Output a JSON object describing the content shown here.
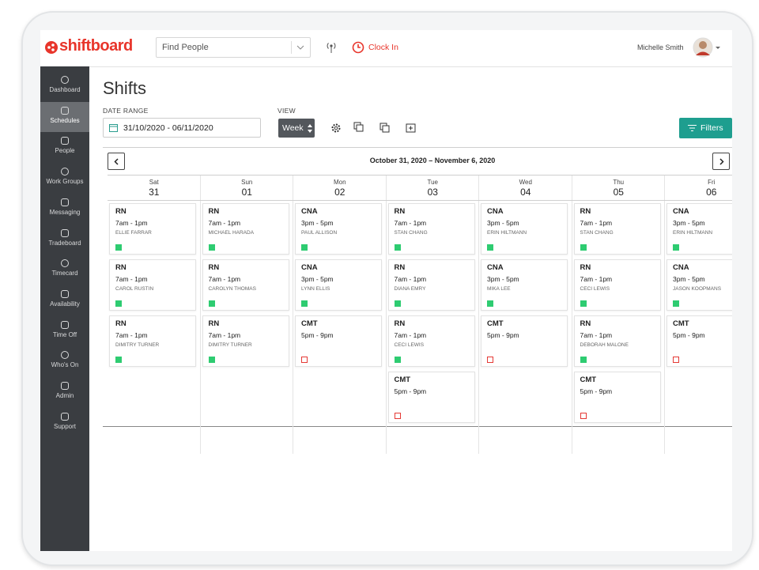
{
  "header": {
    "logo": "shiftboard",
    "search_placeholder": "Find People",
    "clock_in": "Clock In",
    "user": "Michelle Smith"
  },
  "sidebar": [
    "Dashboard",
    "Schedules",
    "People",
    "Work Groups",
    "Messaging",
    "Tradeboard",
    "Timecard",
    "Availability",
    "Time Off",
    "Who's On",
    "Admin",
    "Support"
  ],
  "page": {
    "title": "Shifts",
    "date_range_label": "DATE RANGE",
    "date_range": "31/10/2020 - 06/11/2020",
    "view_label": "VIEW",
    "view": "Week",
    "filters": "Filters",
    "range_title": "October 31, 2020 – November 6, 2020"
  },
  "days": [
    {
      "weekday": "Sat",
      "date": "31",
      "shifts": [
        {
          "role": "RN",
          "time": "7am - 1pm",
          "person": "ELLIE FARRAR",
          "status": "filled"
        },
        {
          "role": "RN",
          "time": "7am - 1pm",
          "person": "CAROL RUSTIN",
          "status": "filled"
        },
        {
          "role": "RN",
          "time": "7am - 1pm",
          "person": "DIMITRY TURNER",
          "status": "filled"
        }
      ]
    },
    {
      "weekday": "Sun",
      "date": "01",
      "shifts": [
        {
          "role": "RN",
          "time": "7am - 1pm",
          "person": "MICHAEL HARADA",
          "status": "filled"
        },
        {
          "role": "RN",
          "time": "7am - 1pm",
          "person": "CAROLYN THOMAS",
          "status": "filled"
        },
        {
          "role": "RN",
          "time": "7am - 1pm",
          "person": "DIMITRY TURNER",
          "status": "filled"
        }
      ]
    },
    {
      "weekday": "Mon",
      "date": "02",
      "shifts": [
        {
          "role": "CNA",
          "time": "3pm - 5pm",
          "person": "PAUL ALLISON",
          "status": "filled"
        },
        {
          "role": "CNA",
          "time": "3pm - 5pm",
          "person": "LYNN ELLIS",
          "status": "filled"
        },
        {
          "role": "CMT",
          "time": "5pm - 9pm",
          "status": "open"
        }
      ]
    },
    {
      "weekday": "Tue",
      "date": "03",
      "shifts": [
        {
          "role": "RN",
          "time": "7am - 1pm",
          "person": "STAN CHANG",
          "status": "filled"
        },
        {
          "role": "RN",
          "time": "7am - 1pm",
          "person": "DIANA EMRY",
          "status": "filled"
        },
        {
          "role": "RN",
          "time": "7am - 1pm",
          "person": "CECI LEWIS",
          "status": "filled"
        },
        {
          "role": "CMT",
          "time": "5pm - 9pm",
          "status": "open"
        }
      ]
    },
    {
      "weekday": "Wed",
      "date": "04",
      "shifts": [
        {
          "role": "CNA",
          "time": "3pm - 5pm",
          "person": "ERIN HILTMANN",
          "status": "filled"
        },
        {
          "role": "CNA",
          "time": "3pm - 5pm",
          "person": "MIKA LEE",
          "status": "filled"
        },
        {
          "role": "CMT",
          "time": "5pm - 9pm",
          "status": "open"
        }
      ]
    },
    {
      "weekday": "Thu",
      "date": "05",
      "shifts": [
        {
          "role": "RN",
          "time": "7am - 1pm",
          "person": "STAN CHANG",
          "status": "filled"
        },
        {
          "role": "RN",
          "time": "7am - 1pm",
          "person": "CECI LEWIS",
          "status": "filled"
        },
        {
          "role": "RN",
          "time": "7am - 1pm",
          "person": "DEBORAH MALONE",
          "status": "filled"
        },
        {
          "role": "CMT",
          "time": "5pm - 9pm",
          "status": "open"
        }
      ]
    },
    {
      "weekday": "Fri",
      "date": "06",
      "shifts": [
        {
          "role": "CNA",
          "time": "3pm - 5pm",
          "person": "ERIN HILTMANN",
          "status": "filled"
        },
        {
          "role": "CNA",
          "time": "3pm - 5pm",
          "person": "JASON KOOPMANS",
          "status": "filled"
        },
        {
          "role": "CMT",
          "time": "5pm - 9pm",
          "status": "open"
        }
      ]
    }
  ]
}
